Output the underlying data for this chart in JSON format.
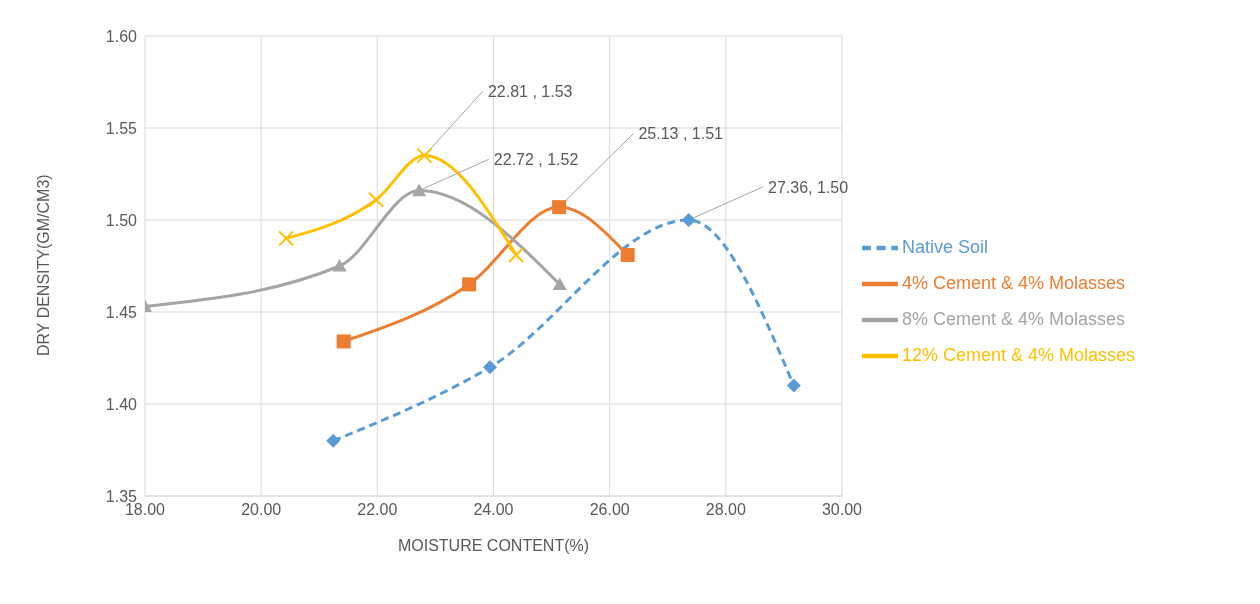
{
  "chart_data": {
    "type": "line",
    "xlabel": "MOISTURE CONTENT(%)",
    "ylabel": "DRY DENSITY(GM/CM3)",
    "xlim": [
      18,
      30
    ],
    "xticks": [
      {
        "value": 18,
        "label": "18.00"
      },
      {
        "value": 20,
        "label": "20.00"
      },
      {
        "value": 22,
        "label": "22.00"
      },
      {
        "value": 24,
        "label": "24.00"
      },
      {
        "value": 26,
        "label": "26.00"
      },
      {
        "value": 28,
        "label": "28.00"
      },
      {
        "value": 30,
        "label": "30.00"
      }
    ],
    "ylim": [
      1.35,
      1.6
    ],
    "yticks": [
      {
        "value": 1.35,
        "label": "1.35"
      },
      {
        "value": 1.4,
        "label": "1.40"
      },
      {
        "value": 1.45,
        "label": "1.45"
      },
      {
        "value": 1.5,
        "label": "1.50"
      },
      {
        "value": 1.55,
        "label": "1.55"
      },
      {
        "value": 1.6,
        "label": "1.60"
      }
    ],
    "grid": true,
    "legend": "right",
    "series": [
      {
        "name": "Native Soil",
        "color": "#5b9bd5",
        "marker": "diamond",
        "line_style": "dashed",
        "x": [
          21.24,
          23.94,
          27.36,
          29.17
        ],
        "values": [
          1.38,
          1.42,
          1.5,
          1.41
        ]
      },
      {
        "name": "4% Cement & 4% Molasses",
        "color": "#ed7d31",
        "marker": "square",
        "line_style": "solid",
        "x": [
          21.42,
          23.58,
          25.13,
          26.31
        ],
        "values": [
          1.434,
          1.465,
          1.507,
          1.481
        ]
      },
      {
        "name": "8% Cement & 4% Molasses",
        "color": "#a5a5a5",
        "marker": "triangle",
        "line_style": "solid",
        "x": [
          18,
          21.35,
          22.72,
          25.14
        ],
        "values": [
          1.453,
          1.475,
          1.516,
          1.465
        ]
      },
      {
        "name": "12% Cement & 4% Molasses",
        "color": "#ffc000",
        "marker": "cross",
        "line_style": "solid",
        "x": [
          20.43,
          21.98,
          22.81,
          24.39
        ],
        "values": [
          1.49,
          1.511,
          1.535,
          1.481
        ]
      }
    ],
    "annotations": [
      {
        "text": "22.81 , 1.53",
        "x": 22.81,
        "y": 1.535
      },
      {
        "text": "22.72 , 1.52",
        "x": 22.72,
        "y": 1.516
      },
      {
        "text": "25.13 , 1.51",
        "x": 25.13,
        "y": 1.507
      },
      {
        "text": "27.36, 1.50",
        "x": 27.36,
        "y": 1.5
      }
    ]
  }
}
